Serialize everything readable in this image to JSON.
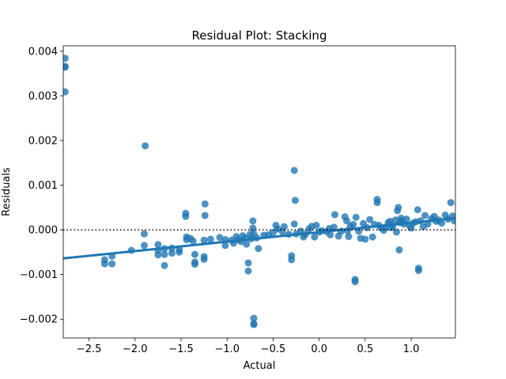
{
  "chart_data": {
    "type": "scatter",
    "title": "Residual Plot: Stacking",
    "xlabel": "Actual",
    "ylabel": "Residuals",
    "xlim": [
      -2.78,
      1.48
    ],
    "ylim": [
      -0.00242,
      0.00412
    ],
    "xticks": [
      -2.5,
      -2.0,
      -1.5,
      -1.0,
      -0.5,
      0.0,
      0.5,
      1.0
    ],
    "xtick_labels": [
      "−2.5",
      "−2.0",
      "−1.5",
      "−1.0",
      "−0.5",
      "0.0",
      "0.5",
      "1.0"
    ],
    "yticks": [
      -0.002,
      -0.001,
      0.0,
      0.001,
      0.002,
      0.003,
      0.004
    ],
    "ytick_labels": [
      "−0.002",
      "−0.001",
      "0.000",
      "0.001",
      "0.002",
      "0.003",
      "0.004"
    ],
    "grid": false,
    "reference_line_y": 0,
    "colors": {
      "points": "#1f77b4",
      "fit_line": "#1f77b4",
      "reference_line": "#000000"
    },
    "fit_line": {
      "x": [
        -2.78,
        1.48
      ],
      "y": [
        -0.00064,
        0.00026
      ]
    },
    "points": [
      [
        -2.76,
        0.00384
      ],
      [
        -2.76,
        0.00366
      ],
      [
        -2.76,
        0.00364
      ],
      [
        -2.76,
        0.00309
      ],
      [
        -1.89,
        0.00188
      ],
      [
        -0.27,
        0.00133
      ],
      [
        -0.26,
        0.00066
      ],
      [
        -1.24,
        0.00058
      ],
      [
        -1.24,
        0.00032
      ],
      [
        -1.45,
        0.00037
      ],
      [
        -1.45,
        0.0003
      ],
      [
        -2.33,
        -0.00067
      ],
      [
        -2.33,
        -0.00076
      ],
      [
        -2.25,
        -0.00059
      ],
      [
        -2.25,
        -0.00076
      ],
      [
        -2.04,
        -0.00046
      ],
      [
        -1.9,
        -9e-05
      ],
      [
        -1.9,
        -0.00035
      ],
      [
        -1.75,
        -0.00033
      ],
      [
        -1.75,
        -0.00046
      ],
      [
        -1.75,
        -0.00056
      ],
      [
        -1.68,
        -0.00042
      ],
      [
        -1.68,
        -0.00055
      ],
      [
        -1.68,
        -0.0008
      ],
      [
        -1.6,
        -0.00041
      ],
      [
        -1.6,
        -0.00052
      ],
      [
        -1.52,
        -0.00044
      ],
      [
        -1.52,
        -0.0005
      ],
      [
        -1.44,
        -0.00016
      ],
      [
        -1.44,
        -0.00022
      ],
      [
        -1.4,
        -0.00019
      ],
      [
        -1.37,
        -0.00025
      ],
      [
        -1.35,
        -0.00055
      ],
      [
        -1.35,
        -0.00072
      ],
      [
        -1.35,
        -0.00077
      ],
      [
        -1.25,
        -0.0006
      ],
      [
        -1.25,
        -0.00066
      ],
      [
        -1.25,
        -0.00023
      ],
      [
        -1.18,
        -0.00021
      ],
      [
        -1.08,
        -0.00017
      ],
      [
        -1.02,
        -0.00022
      ],
      [
        -1.02,
        -0.00035
      ],
      [
        -0.95,
        -0.00023
      ],
      [
        -0.93,
        -0.0003
      ],
      [
        -0.9,
        -0.00015
      ],
      [
        -0.88,
        -0.00022
      ],
      [
        -0.85,
        -0.00026
      ],
      [
        -0.83,
        -0.00013
      ],
      [
        -0.8,
        -0.00018
      ],
      [
        -0.79,
        -0.00032
      ],
      [
        -0.77,
        -0.00074
      ],
      [
        -0.77,
        -0.00092
      ],
      [
        -0.75,
        -0.0001
      ],
      [
        -0.74,
        -0.0002
      ],
      [
        -0.72,
        0.0002
      ],
      [
        -0.72,
        4e-05
      ],
      [
        -0.71,
        -9e-05
      ],
      [
        -0.71,
        -0.00198
      ],
      [
        -0.71,
        -0.00212
      ],
      [
        -0.71,
        -0.0021
      ],
      [
        -0.68,
        -0.00018
      ],
      [
        -0.66,
        -0.00042
      ],
      [
        -0.6,
        -0.00012
      ],
      [
        -0.55,
        -0.00011
      ],
      [
        -0.5,
        -6e-05
      ],
      [
        -0.47,
        0.0001
      ],
      [
        -0.45,
        2e-05
      ],
      [
        -0.4,
        -4e-05
      ],
      [
        -0.38,
        7e-05
      ],
      [
        -0.33,
        -0.0001
      ],
      [
        -0.3,
        -0.00058
      ],
      [
        -0.3,
        -0.00067
      ],
      [
        -0.27,
        0.00013
      ],
      [
        -0.25,
        -9e-05
      ],
      [
        -0.2,
        -3e-05
      ],
      [
        -0.17,
        -0.00016
      ],
      [
        -0.15,
        -0.0001
      ],
      [
        -0.11,
        2e-05
      ],
      [
        -0.08,
        8e-05
      ],
      [
        -0.05,
        -0.00016
      ],
      [
        -0.03,
        0.0001
      ],
      [
        0.0,
        -5e-05
      ],
      [
        0.03,
        -2e-05
      ],
      [
        0.08,
        -4e-05
      ],
      [
        0.11,
        3e-05
      ],
      [
        0.12,
        -0.00011
      ],
      [
        0.16,
        6e-05
      ],
      [
        0.17,
        0.00034
      ],
      [
        0.21,
        -0.00014
      ],
      [
        0.24,
        -3e-05
      ],
      [
        0.28,
        0.00029
      ],
      [
        0.3,
        0.0002
      ],
      [
        0.31,
        -2e-05
      ],
      [
        0.32,
        -0.00015
      ],
      [
        0.34,
        8e-05
      ],
      [
        0.37,
        0.00012
      ],
      [
        0.39,
        -0.00111
      ],
      [
        0.39,
        -0.00116
      ],
      [
        0.4,
        0.00028
      ],
      [
        0.43,
        -3e-05
      ],
      [
        0.45,
        -0.00019
      ],
      [
        0.48,
        0.00014
      ],
      [
        0.5,
        -0.00021
      ],
      [
        0.52,
        5e-05
      ],
      [
        0.55,
        0.00023
      ],
      [
        0.58,
        -0.00016
      ],
      [
        0.6,
        0.00012
      ],
      [
        0.63,
        0.00068
      ],
      [
        0.63,
        0.00061
      ],
      [
        0.65,
        0.0001
      ],
      [
        0.67,
        5e-05
      ],
      [
        0.7,
        -1e-05
      ],
      [
        0.72,
        6e-05
      ],
      [
        0.75,
        0.00016
      ],
      [
        0.77,
        0.00019
      ],
      [
        0.78,
        5e-05
      ],
      [
        0.8,
        8e-05
      ],
      [
        0.83,
        0.00022
      ],
      [
        0.84,
        -5e-05
      ],
      [
        0.85,
        0.00043
      ],
      [
        0.86,
        0.0005
      ],
      [
        0.87,
        -0.00045
      ],
      [
        0.88,
        0.00016
      ],
      [
        0.89,
        0.00026
      ],
      [
        0.9,
        0.00021
      ],
      [
        0.92,
        0.00013
      ],
      [
        0.95,
        0.00024
      ],
      [
        0.98,
        9e-05
      ],
      [
        1.0,
        4e-05
      ],
      [
        1.02,
        0.00015
      ],
      [
        1.05,
        0.00018
      ],
      [
        1.07,
        0.00045
      ],
      [
        1.08,
        -0.00086
      ],
      [
        1.08,
        -0.00091
      ],
      [
        1.1,
        0.0002
      ],
      [
        1.13,
        7e-05
      ],
      [
        1.15,
        0.00032
      ],
      [
        1.18,
        0.00013
      ],
      [
        1.22,
        0.00025
      ],
      [
        1.25,
        0.0003
      ],
      [
        1.27,
        0.00019
      ],
      [
        1.3,
        0.00022
      ],
      [
        1.33,
        0.00015
      ],
      [
        1.37,
        0.00033
      ],
      [
        1.4,
        0.00024
      ],
      [
        1.43,
        0.00061
      ],
      [
        1.45,
        0.00031
      ],
      [
        1.47,
        0.0002
      ]
    ]
  }
}
